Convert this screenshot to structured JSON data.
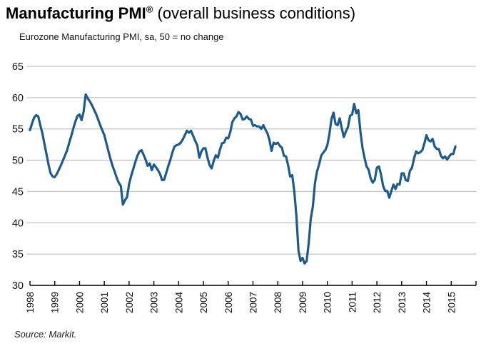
{
  "header": {
    "title_bold": "Manufacturing PMI",
    "title_sup": "®",
    "title_rest": " (overall business conditions)",
    "subtitle": "Eurozone Manufacturing PMI, sa, 50 = no change"
  },
  "footer": {
    "source": "Source: Markit."
  },
  "chart_data": {
    "type": "line",
    "title": "Manufacturing PMI® (overall business conditions)",
    "subtitle": "Eurozone Manufacturing PMI, sa, 50 = no change",
    "source": "Source: Markit.",
    "grid": "horizontal",
    "legend": "none",
    "colors": {
      "line": "#1E5A8C",
      "gridline": "#c4c4c4",
      "axis": "#000000",
      "text": "#111111",
      "background": "#ffffff"
    },
    "ylim": [
      30,
      65
    ],
    "y_ticks": [
      30,
      35,
      40,
      45,
      50,
      55,
      60,
      65
    ],
    "x_axis_start_year": 1998,
    "x_axis_end_year": 2016,
    "x_tick_labels": [
      "1998",
      "1999",
      "2000",
      "2001",
      "2002",
      "2003",
      "2004",
      "2005",
      "2006",
      "2007",
      "2008",
      "2009",
      "2010",
      "2011",
      "2012",
      "2013",
      "2014",
      "2015"
    ],
    "series": [
      {
        "name": "Eurozone Manufacturing PMI",
        "frequency": "monthly",
        "start": "1998-01",
        "end": "2015-03",
        "values": [
          54.8,
          55.9,
          56.8,
          57.2,
          57.0,
          55.6,
          54.3,
          52.6,
          51.0,
          49.3,
          47.9,
          47.4,
          47.3,
          47.8,
          48.5,
          49.2,
          50.0,
          50.8,
          51.6,
          52.8,
          53.9,
          55.1,
          56.2,
          57.1,
          57.3,
          56.4,
          57.8,
          60.5,
          59.9,
          59.4,
          58.8,
          58.1,
          57.4,
          56.5,
          55.6,
          54.8,
          54.0,
          52.7,
          51.4,
          50.2,
          49.1,
          48.2,
          47.2,
          46.4,
          45.9,
          42.9,
          43.6,
          44.1,
          46.2,
          47.5,
          48.6,
          49.7,
          50.7,
          51.4,
          51.6,
          50.9,
          50.1,
          49.1,
          49.5,
          48.4,
          49.3,
          48.9,
          48.4,
          47.8,
          46.8,
          46.9,
          48.0,
          49.1,
          50.1,
          51.3,
          52.2,
          52.4,
          52.5,
          52.8,
          53.3,
          54.0,
          54.7,
          54.4,
          54.7,
          53.9,
          53.1,
          52.4,
          50.4,
          51.4,
          51.9,
          51.9,
          50.4,
          49.2,
          48.7,
          49.9,
          50.8,
          50.4,
          51.7,
          52.7,
          52.8,
          53.6,
          53.5,
          54.5,
          56.1,
          56.7,
          57.0,
          57.7,
          57.4,
          56.5,
          56.6,
          57.0,
          56.6,
          56.5,
          55.5,
          55.6,
          55.4,
          55.4,
          55.0,
          55.6,
          54.9,
          54.3,
          53.2,
          51.5,
          52.8,
          52.6,
          52.8,
          52.3,
          52.0,
          50.7,
          50.6,
          49.2,
          47.4,
          47.6,
          45.0,
          41.1,
          35.6,
          33.9,
          34.4,
          33.5,
          33.9,
          36.8,
          40.7,
          42.6,
          46.3,
          48.2,
          49.3,
          50.7,
          51.2,
          51.6,
          52.4,
          54.2,
          56.6,
          57.6,
          55.8,
          55.6,
          56.7,
          55.1,
          53.7,
          54.6,
          55.3,
          57.1,
          57.3,
          59.0,
          57.5,
          58.0,
          54.6,
          52.0,
          50.4,
          49.0,
          48.5,
          47.1,
          46.4,
          46.9,
          48.8,
          49.0,
          47.7,
          45.9,
          45.1,
          45.1,
          44.0,
          45.1,
          46.1,
          45.4,
          46.2,
          46.1,
          47.9,
          47.9,
          46.8,
          46.7,
          48.3,
          48.8,
          50.3,
          51.4,
          51.1,
          51.3,
          51.6,
          52.7,
          54.0,
          53.2,
          53.0,
          53.4,
          52.2,
          51.8,
          51.8,
          50.7,
          50.3,
          50.6,
          50.1,
          50.6,
          51.0,
          51.0,
          52.2
        ]
      }
    ]
  }
}
